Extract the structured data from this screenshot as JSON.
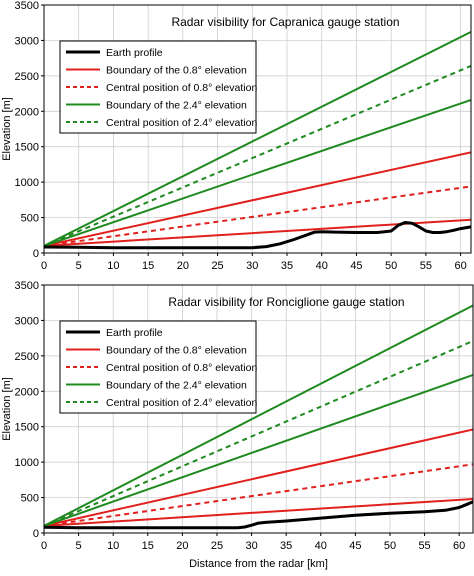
{
  "chart_data": [
    {
      "type": "line",
      "title": "Radar visibility for Capranica gauge station",
      "xlabel": "",
      "ylabel": "Elevation [m]",
      "xlim": [
        0,
        61.5
      ],
      "ylim": [
        0,
        3500
      ],
      "xticks": [
        "0",
        "5",
        "10",
        "15",
        "20",
        "25",
        "30",
        "35",
        "40",
        "45",
        "50",
        "55",
        "60"
      ],
      "yticks": [
        "0",
        "500",
        "1000",
        "1500",
        "2000",
        "2500",
        "3000",
        "3500"
      ],
      "grid": true,
      "legend_position": "top-left",
      "series": [
        {
          "name": "Earth profile",
          "color": "#000000",
          "style": "solid",
          "width": 3,
          "x": [
            0,
            5,
            10,
            15,
            20,
            25,
            30,
            32,
            34,
            36,
            38,
            39,
            40,
            42,
            45,
            48,
            50,
            51,
            52,
            53,
            54,
            55,
            56,
            57,
            58,
            59,
            60,
            61.5
          ],
          "y": [
            85,
            80,
            75,
            75,
            75,
            75,
            75,
            90,
            130,
            190,
            260,
            295,
            300,
            295,
            290,
            290,
            310,
            390,
            430,
            420,
            370,
            310,
            290,
            290,
            300,
            320,
            345,
            370
          ]
        },
        {
          "name": "Boundary of the 0.8° elevation",
          "color": "#e0201c",
          "style": "solid",
          "width": 2,
          "x": [
            0,
            61.5
          ],
          "y": [
            100,
            470
          ]
        },
        {
          "name": "Central position of 0.8° elevation",
          "color": "#e0201c",
          "style": "dashed",
          "width": 2,
          "x": [
            0,
            61.5
          ],
          "y": [
            100,
            940
          ]
        },
        {
          "name": "",
          "color": "#e0201c",
          "style": "solid",
          "width": 2,
          "x": [
            0,
            61.5
          ],
          "y": [
            100,
            1420
          ]
        },
        {
          "name": "Boundary of the 2.4° elevation",
          "color": "#1f8a1f",
          "style": "solid",
          "width": 2,
          "x": [
            0,
            61.5
          ],
          "y": [
            100,
            2160
          ]
        },
        {
          "name": "Central position of 2.4° elevation",
          "color": "#1f8a1f",
          "style": "dashed",
          "width": 2,
          "x": [
            0,
            61.5
          ],
          "y": [
            100,
            2640
          ]
        },
        {
          "name": "",
          "color": "#1f8a1f",
          "style": "solid",
          "width": 2,
          "x": [
            0,
            61.5
          ],
          "y": [
            100,
            3120
          ]
        }
      ],
      "legend": [
        {
          "label": "Earth profile",
          "color": "#000000",
          "style": "solid",
          "width": 3
        },
        {
          "label": "Boundary of the 0.8° elevation",
          "color": "#e0201c",
          "style": "solid",
          "width": 2
        },
        {
          "label": "Central position of 0.8° elevation",
          "color": "#e0201c",
          "style": "dashed",
          "width": 2
        },
        {
          "label": "Boundary of the 2.4° elevation",
          "color": "#1f8a1f",
          "style": "solid",
          "width": 2
        },
        {
          "label": "Central position of 2.4° elevation",
          "color": "#1f8a1f",
          "style": "dashed",
          "width": 2
        }
      ]
    },
    {
      "type": "line",
      "title": "Radar visibility for Ronciglione gauge station",
      "xlabel": "Distance from the radar [km]",
      "ylabel": "Elevation [m]",
      "xlim": [
        0,
        62
      ],
      "ylim": [
        0,
        3500
      ],
      "xticks": [
        "0",
        "5",
        "10",
        "15",
        "20",
        "25",
        "30",
        "35",
        "40",
        "45",
        "50",
        "55",
        "60"
      ],
      "yticks": [
        "0",
        "500",
        "1000",
        "1500",
        "2000",
        "2500",
        "3000",
        "3500"
      ],
      "grid": true,
      "legend_position": "top-left",
      "series": [
        {
          "name": "Earth profile",
          "color": "#000000",
          "style": "solid",
          "width": 3,
          "x": [
            0,
            5,
            10,
            15,
            20,
            25,
            28,
            29,
            30,
            31,
            32,
            35,
            40,
            45,
            50,
            55,
            58,
            60,
            61,
            62
          ],
          "y": [
            80,
            75,
            75,
            75,
            75,
            75,
            75,
            85,
            110,
            140,
            150,
            170,
            210,
            250,
            280,
            300,
            320,
            360,
            400,
            440
          ]
        },
        {
          "name": "Boundary of the 0.8° elevation",
          "color": "#e0201c",
          "style": "solid",
          "width": 2,
          "x": [
            0,
            62
          ],
          "y": [
            100,
            480
          ]
        },
        {
          "name": "Central position of 0.8° elevation",
          "color": "#e0201c",
          "style": "dashed",
          "width": 2,
          "x": [
            0,
            62
          ],
          "y": [
            100,
            970
          ]
        },
        {
          "name": "",
          "color": "#e0201c",
          "style": "solid",
          "width": 2,
          "x": [
            0,
            62
          ],
          "y": [
            100,
            1460
          ]
        },
        {
          "name": "Boundary of the 2.4° elevation",
          "color": "#1f8a1f",
          "style": "solid",
          "width": 2,
          "x": [
            0,
            62
          ],
          "y": [
            100,
            2230
          ]
        },
        {
          "name": "Central position of 2.4° elevation",
          "color": "#1f8a1f",
          "style": "dashed",
          "width": 2,
          "x": [
            0,
            62
          ],
          "y": [
            100,
            2710
          ]
        },
        {
          "name": "",
          "color": "#1f8a1f",
          "style": "solid",
          "width": 2,
          "x": [
            0,
            62
          ],
          "y": [
            100,
            3210
          ]
        }
      ],
      "legend": [
        {
          "label": "Earth profile",
          "color": "#000000",
          "style": "solid",
          "width": 3
        },
        {
          "label": "Boundary of the 0.8° elevation",
          "color": "#e0201c",
          "style": "solid",
          "width": 2
        },
        {
          "label": "Central position of 0.8° elevation",
          "color": "#e0201c",
          "style": "dashed",
          "width": 2
        },
        {
          "label": "Boundary of the 2.4° elevation",
          "color": "#1f8a1f",
          "style": "solid",
          "width": 2
        },
        {
          "label": "Central position of 2.4° elevation",
          "color": "#1f8a1f",
          "style": "dashed",
          "width": 2
        }
      ]
    }
  ]
}
